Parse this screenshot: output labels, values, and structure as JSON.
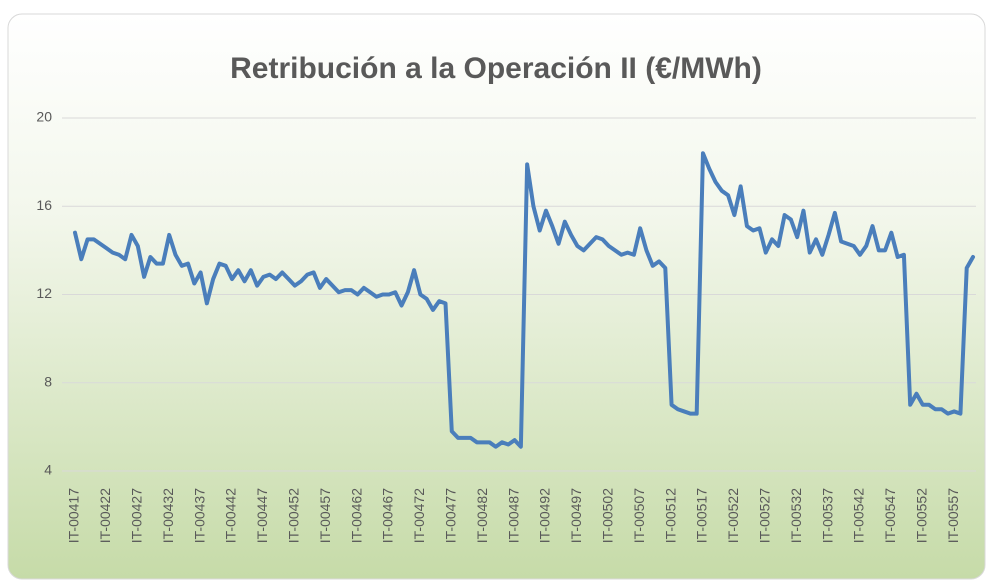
{
  "chart_data": {
    "type": "line",
    "title": "Retribución a la Operación II (€/MWh)",
    "categories": [
      "IT-00417",
      null,
      null,
      null,
      null,
      "IT-00422",
      null,
      null,
      null,
      null,
      "IT-00427",
      null,
      null,
      null,
      null,
      "IT-00432",
      null,
      null,
      null,
      null,
      "IT-00437",
      null,
      null,
      null,
      null,
      "IT-00442",
      null,
      null,
      null,
      null,
      "IT-00447",
      null,
      null,
      null,
      null,
      "IT-00452",
      null,
      null,
      null,
      null,
      "IT-00457",
      null,
      null,
      null,
      null,
      "IT-00462",
      null,
      null,
      null,
      null,
      "IT-00467",
      null,
      null,
      null,
      null,
      "IT-00472",
      null,
      null,
      null,
      null,
      "IT-00477",
      null,
      null,
      null,
      null,
      "IT-00482",
      null,
      null,
      null,
      null,
      "IT-00487",
      null,
      null,
      null,
      null,
      "IT-00492",
      null,
      null,
      null,
      null,
      "IT-00497",
      null,
      null,
      null,
      null,
      "IT-00502",
      null,
      null,
      null,
      null,
      "IT-00507",
      null,
      null,
      null,
      null,
      "IT-00512",
      null,
      null,
      null,
      null,
      "IT-00517",
      null,
      null,
      null,
      null,
      "IT-00522",
      null,
      null,
      null,
      null,
      "IT-00527",
      null,
      null,
      null,
      null,
      "IT-00532",
      null,
      null,
      null,
      null,
      "IT-00537",
      null,
      null,
      null,
      null,
      "IT-00542",
      null,
      null,
      null,
      null,
      "IT-00547",
      null,
      null,
      null,
      null,
      "IT-00552",
      null,
      null,
      null,
      null,
      "IT-00557",
      null,
      null,
      null
    ],
    "series": [
      {
        "name": "Retribución a la Operación II",
        "color": "#4a7ebb",
        "values": [
          14.8,
          13.6,
          14.5,
          14.5,
          14.3,
          14.1,
          13.9,
          13.8,
          13.6,
          14.7,
          14.2,
          12.8,
          13.7,
          13.4,
          13.4,
          14.7,
          13.8,
          13.3,
          13.4,
          12.5,
          13.0,
          11.6,
          12.7,
          13.4,
          13.3,
          12.7,
          13.1,
          12.6,
          13.1,
          12.4,
          12.8,
          12.9,
          12.7,
          13.0,
          12.7,
          12.4,
          12.6,
          12.9,
          13.0,
          12.3,
          12.7,
          12.4,
          12.1,
          12.2,
          12.2,
          12.0,
          12.3,
          12.1,
          11.9,
          12.0,
          12.0,
          12.1,
          11.5,
          12.1,
          13.1,
          12.0,
          11.8,
          11.3,
          11.7,
          11.6,
          5.8,
          5.5,
          5.5,
          5.5,
          5.3,
          5.3,
          5.3,
          5.1,
          5.3,
          5.2,
          5.4,
          5.1,
          17.9,
          16.0,
          14.9,
          15.8,
          15.1,
          14.3,
          15.3,
          14.7,
          14.2,
          14.0,
          14.3,
          14.6,
          14.5,
          14.2,
          14.0,
          13.8,
          13.9,
          13.8,
          15.0,
          14.0,
          13.3,
          13.5,
          13.2,
          7.0,
          6.8,
          6.7,
          6.6,
          6.6,
          18.4,
          17.7,
          17.1,
          16.7,
          16.5,
          15.6,
          16.9,
          15.1,
          14.9,
          15.0,
          13.9,
          14.5,
          14.2,
          15.6,
          15.4,
          14.6,
          15.8,
          13.9,
          14.5,
          13.8,
          14.7,
          15.7,
          14.4,
          14.3,
          14.2,
          13.8,
          14.2,
          15.1,
          14.0,
          14.0,
          14.8,
          13.7,
          13.8,
          7.0,
          7.5,
          7.0,
          7.0,
          6.8,
          6.8,
          6.6,
          6.7,
          6.6,
          13.2,
          13.7
        ]
      }
    ],
    "ylim": [
      4,
      20
    ],
    "yticks": [
      4,
      8,
      12,
      16,
      20
    ],
    "grid": true
  }
}
